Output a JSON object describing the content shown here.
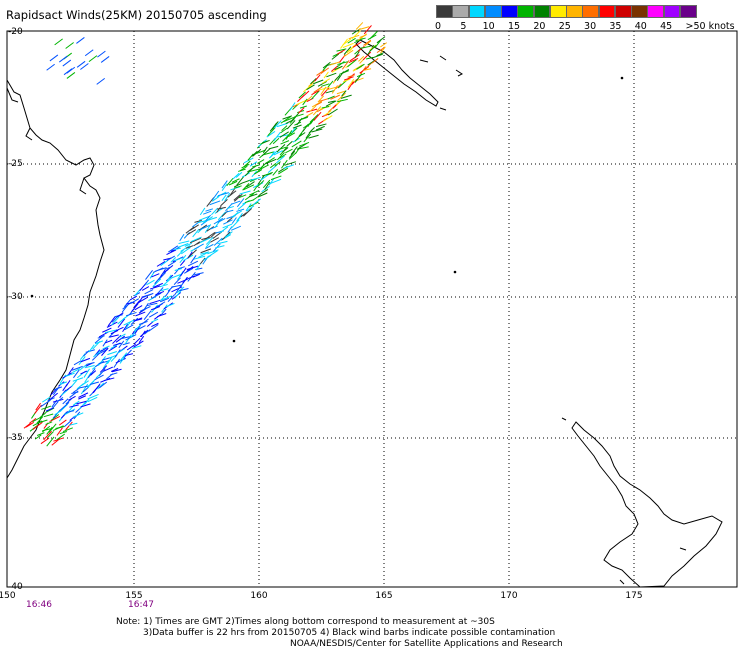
{
  "title": "Rapidsact Winds(25KM) 20150705 ascending",
  "colorbar": {
    "colors": [
      "#3a3a3a",
      "#ababab",
      "#00d7ff",
      "#008cff",
      "#0000ff",
      "#00b400",
      "#008200",
      "#ffeb00",
      "#ffb400",
      "#ff6e00",
      "#ff0000",
      "#ce0000",
      "#7a3200",
      "#ff00ff",
      "#a000ff",
      "#6a008a"
    ],
    "labels": [
      "0",
      "5",
      "10",
      "15",
      "20",
      "25",
      "30",
      "35",
      "40",
      "45",
      ">50 knots"
    ],
    "label_positions": [
      0,
      2,
      4,
      6,
      8,
      10,
      12,
      14,
      16,
      18,
      20
    ]
  },
  "lat_labels": [
    "-20",
    "-25",
    "-30",
    "-35",
    "-40"
  ],
  "lon_labels": [
    "150",
    "155",
    "160",
    "165",
    "170",
    "175"
  ],
  "times": [
    "16:46",
    "16:47"
  ],
  "notes": [
    "Note: 1) Times are GMT 2)Times along bottom correspond to measurement at ~30S",
    "3)Data buffer is 22 hrs from 20150705 4) Black wind barbs indicate possible contamination",
    "NOAA/NESDIS/Center for Satellite Applications and Research"
  ]
}
